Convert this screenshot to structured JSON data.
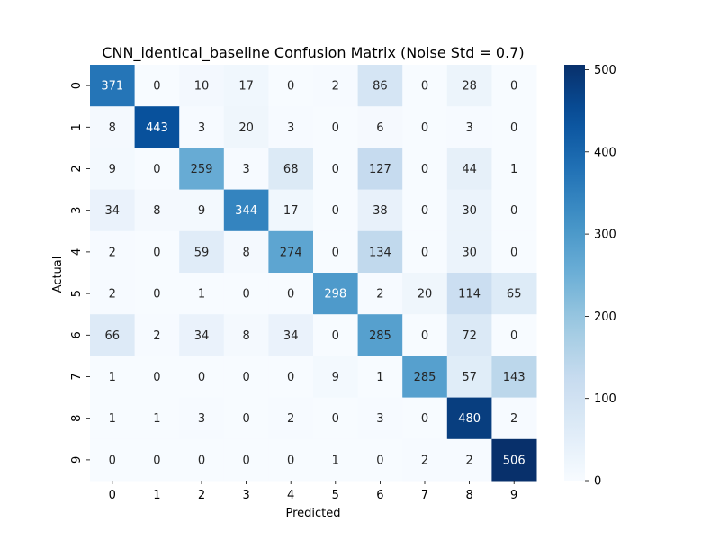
{
  "chart_data": {
    "type": "heatmap",
    "title": "CNN_identical_baseline Confusion Matrix (Noise Std = 0.7)",
    "xlabel": "Predicted",
    "ylabel": "Actual",
    "x_categories": [
      "0",
      "1",
      "2",
      "3",
      "4",
      "5",
      "6",
      "7",
      "8",
      "9"
    ],
    "y_categories": [
      "0",
      "1",
      "2",
      "3",
      "4",
      "5",
      "6",
      "7",
      "8",
      "9"
    ],
    "matrix": [
      [
        371,
        0,
        10,
        17,
        0,
        2,
        86,
        0,
        28,
        0
      ],
      [
        8,
        443,
        3,
        20,
        3,
        0,
        6,
        0,
        3,
        0
      ],
      [
        9,
        0,
        259,
        3,
        68,
        0,
        127,
        0,
        44,
        1
      ],
      [
        34,
        8,
        9,
        344,
        17,
        0,
        38,
        0,
        30,
        0
      ],
      [
        2,
        0,
        59,
        8,
        274,
        0,
        134,
        0,
        30,
        0
      ],
      [
        2,
        0,
        1,
        0,
        0,
        298,
        2,
        20,
        114,
        65
      ],
      [
        66,
        2,
        34,
        8,
        34,
        0,
        285,
        0,
        72,
        0
      ],
      [
        1,
        0,
        0,
        0,
        0,
        9,
        1,
        285,
        57,
        143
      ],
      [
        1,
        1,
        3,
        0,
        2,
        0,
        3,
        0,
        480,
        2
      ],
      [
        0,
        0,
        0,
        0,
        0,
        1,
        0,
        2,
        2,
        506
      ]
    ],
    "colormap": "Blues",
    "vmin": 0,
    "vmax": 506,
    "colorbar_ticks": [
      "0",
      "100",
      "200",
      "300",
      "400",
      "500"
    ],
    "colorbar_tick_values": [
      0,
      100,
      200,
      300,
      400,
      500
    ]
  }
}
